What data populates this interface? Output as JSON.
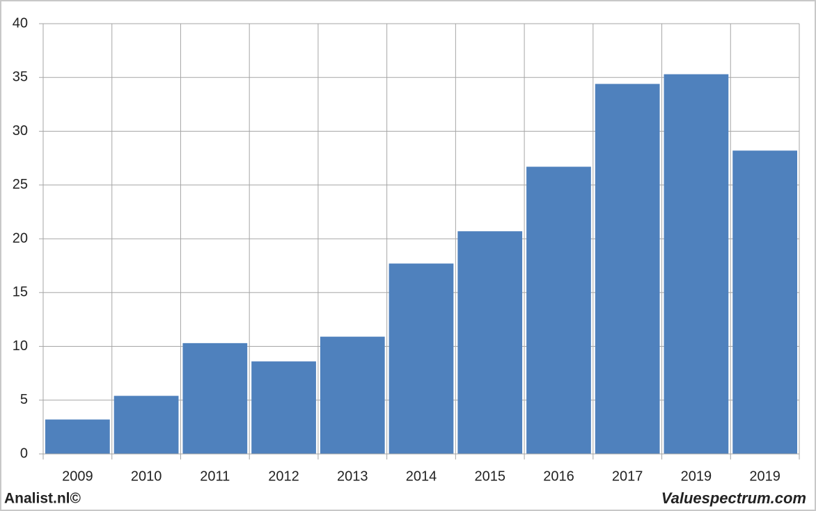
{
  "chart_data": {
    "type": "bar",
    "categories": [
      "2009",
      "2010",
      "2011",
      "2012",
      "2013",
      "2014",
      "2015",
      "2016",
      "2017",
      "2019",
      "2019"
    ],
    "values": [
      3.2,
      5.4,
      10.3,
      8.6,
      10.9,
      17.7,
      20.7,
      26.7,
      34.4,
      35.3,
      28.2
    ],
    "color": "#4f81bd",
    "ylim": [
      0,
      40
    ],
    "yticks": [
      0,
      5,
      10,
      15,
      20,
      25,
      30,
      35,
      40
    ],
    "grid": true,
    "source_left": "Analist.nl©",
    "source_right": "Valuespectrum.com"
  }
}
